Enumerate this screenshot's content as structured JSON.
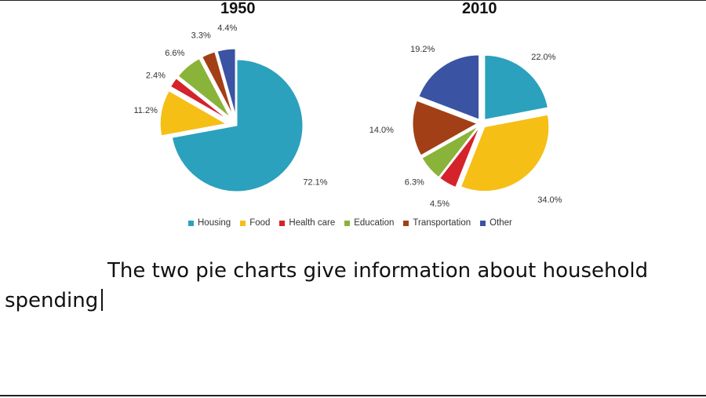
{
  "chart_data": [
    {
      "type": "pie",
      "title": "1950",
      "categories": [
        "Housing",
        "Food",
        "Health care",
        "Education",
        "Transportation",
        "Other"
      ],
      "values": [
        72.1,
        11.2,
        2.4,
        6.6,
        3.3,
        4.4
      ],
      "labels": [
        "72.1%",
        "11.2%",
        "2.4%",
        "6.6%",
        "3.3%",
        "4.4%"
      ],
      "exploded": [
        "Health care",
        "Education",
        "Transportation",
        "Other",
        "Food"
      ]
    },
    {
      "type": "pie",
      "title": "2010",
      "categories": [
        "Housing",
        "Food",
        "Health care",
        "Education",
        "Transportation",
        "Other"
      ],
      "values": [
        22.0,
        34.0,
        4.5,
        6.3,
        14.0,
        19.2
      ],
      "labels": [
        "22.0%",
        "34.0%",
        "4.5%",
        "6.3%",
        "14.0%",
        "19.2%"
      ],
      "exploded": [
        "Food",
        "Health care",
        "Education",
        "Transportation",
        "Other",
        "Housing"
      ]
    }
  ],
  "legend": [
    {
      "label": "Housing",
      "color": "#2ba1bd"
    },
    {
      "label": "Food",
      "color": "#f5bf16"
    },
    {
      "label": "Health care",
      "color": "#d4232b"
    },
    {
      "label": "Education",
      "color": "#8ab33a"
    },
    {
      "label": "Transportation",
      "color": "#a33f16"
    },
    {
      "label": "Other",
      "color": "#3a54a3"
    }
  ],
  "editor": {
    "text": "The two pie charts give information about household spending"
  }
}
